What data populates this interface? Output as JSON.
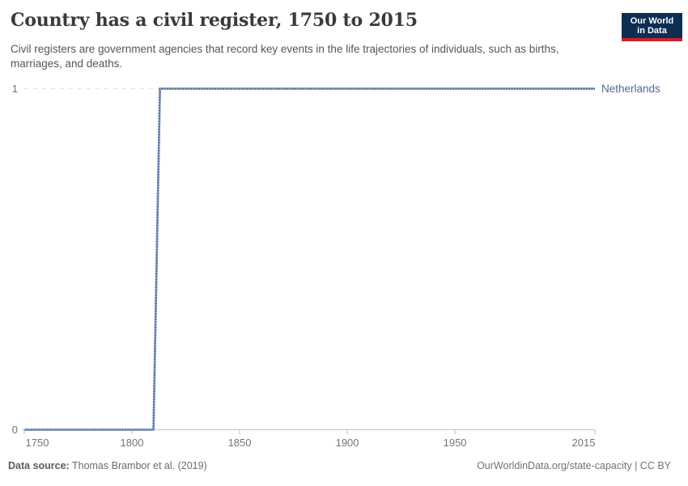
{
  "header": {
    "title": "Country has a civil register, 1750 to 2015",
    "subtitle": "Civil registers are government agencies that record key events in the life trajectories of individuals, such as births, marriages, and deaths.",
    "logo": {
      "line1": "Our World",
      "line2": "in Data",
      "background_color": "#0e2d53",
      "stripe_color": "#c8232c"
    }
  },
  "chart_data": {
    "type": "line",
    "title": "Country has a civil register, 1750 to 2015",
    "xlabel": "",
    "ylabel": "",
    "xlim": [
      1750,
      2015
    ],
    "ylim": [
      0,
      1
    ],
    "x_ticks": [
      1750,
      1800,
      1850,
      1900,
      1950,
      2015
    ],
    "y_ticks": [
      1,
      0
    ],
    "grid": "horizontal dashed gridline at y=1 only",
    "legend_position": "end-of-line label at right",
    "series": [
      {
        "name": "Netherlands",
        "color": "#4c6a9c",
        "points": [
          [
            1750,
            0
          ],
          [
            1810,
            0
          ],
          [
            1813,
            1
          ],
          [
            2015,
            1
          ]
        ],
        "note": "step function: 0 until ~1811, 1 thereafter through 2015"
      }
    ]
  },
  "footer": {
    "source_label": "Data source:",
    "source_value": " Thomas Brambor et al. (2019)",
    "credit": "OurWorldinData.org/state-capacity | CC BY"
  }
}
